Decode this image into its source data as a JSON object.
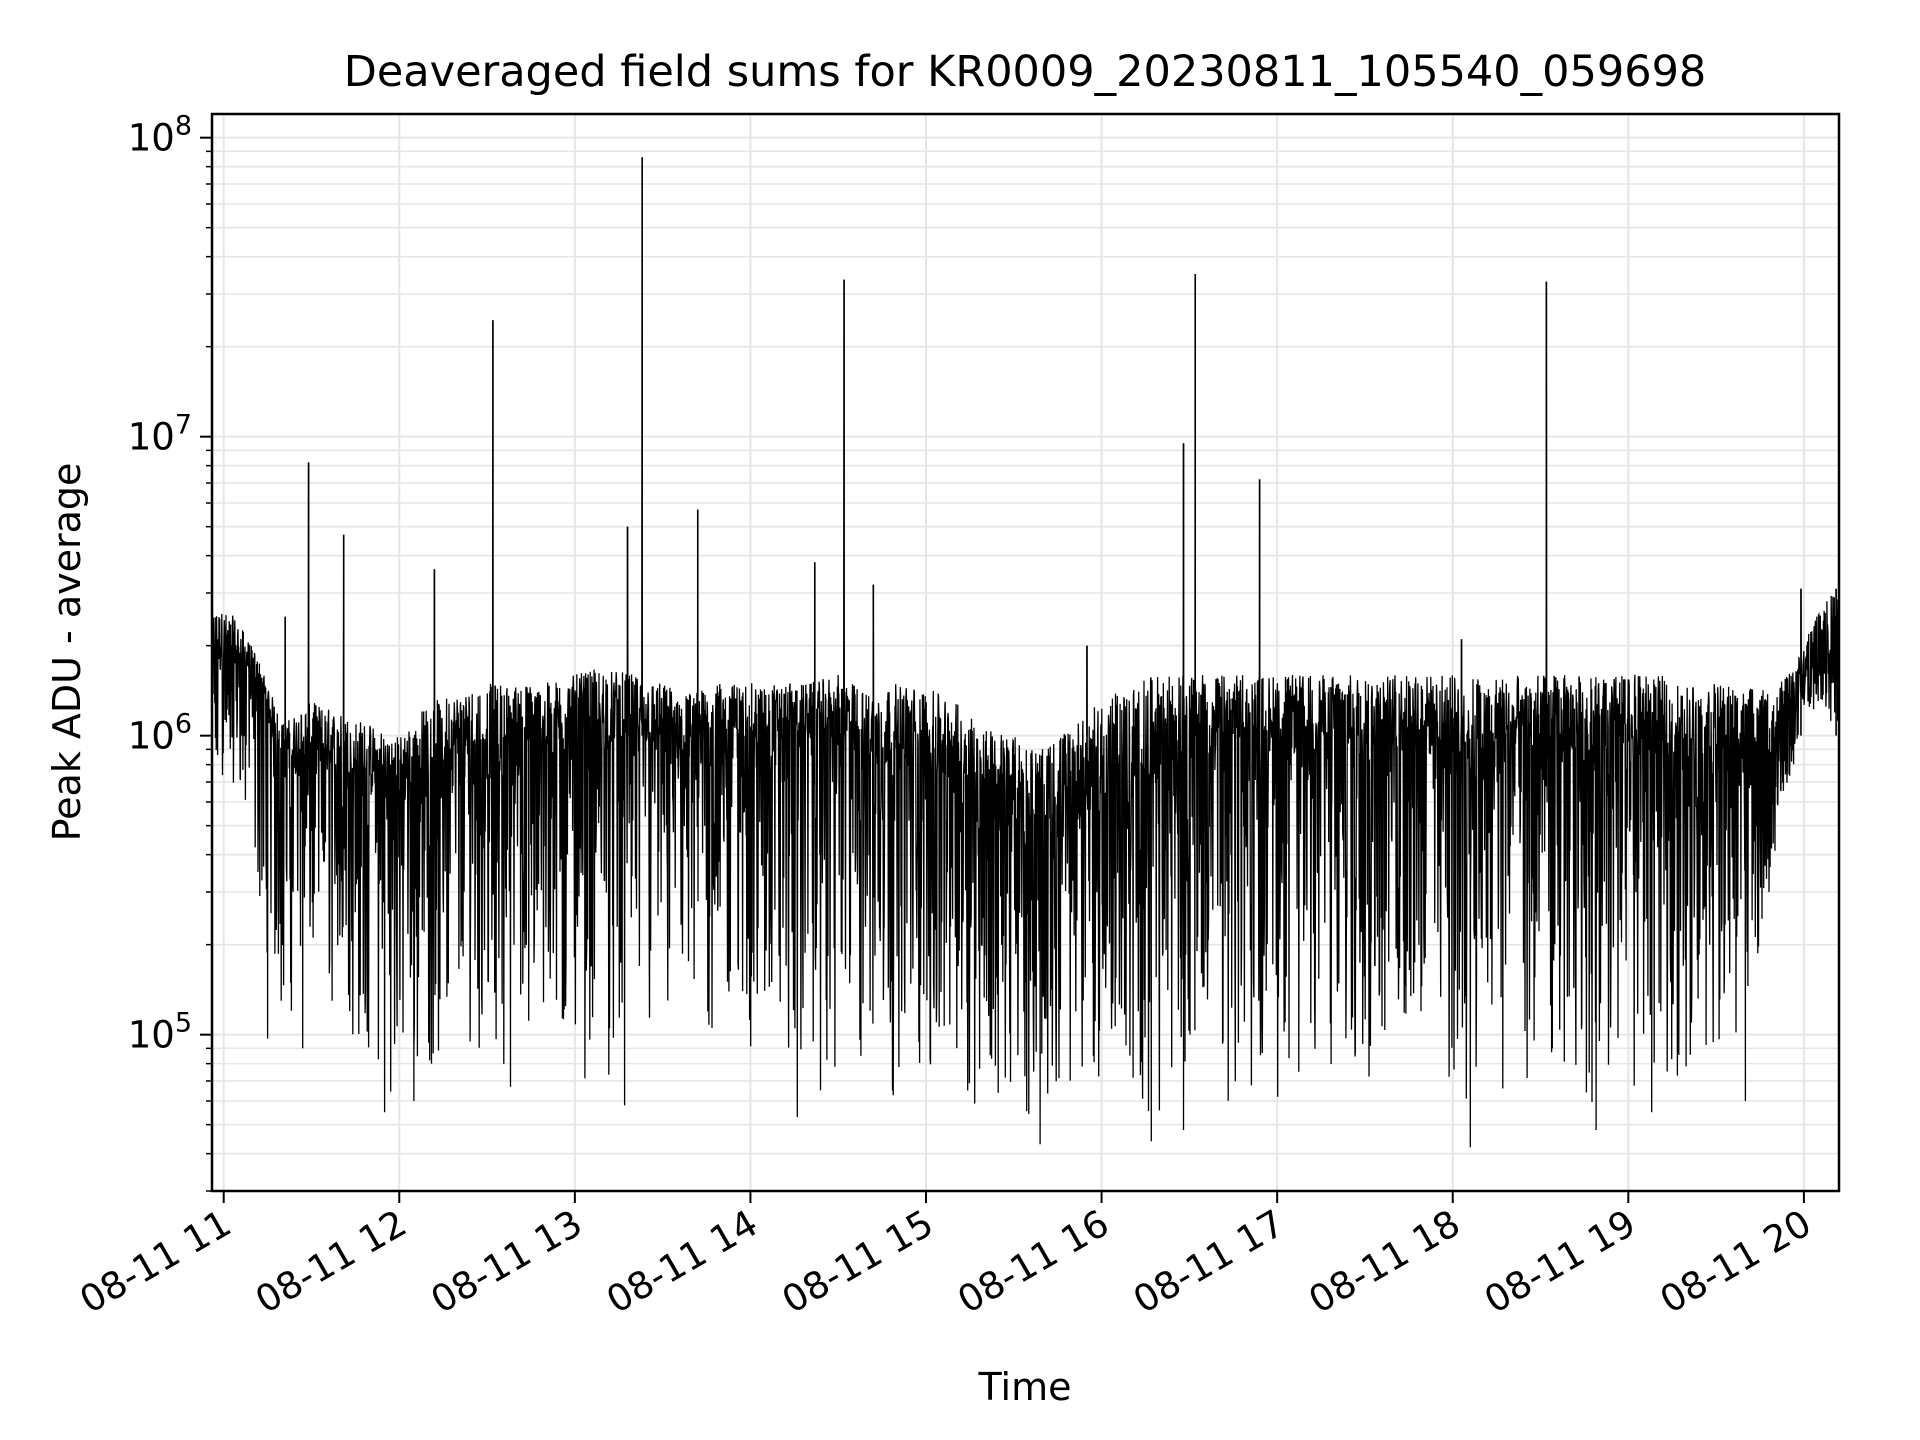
{
  "chart_data": {
    "type": "line",
    "title": "Deaveraged field sums for KR0009_20230811_105540_059698",
    "xlabel": "Time",
    "ylabel": "Peak ADU - average",
    "yscale": "log",
    "ylim": [
      30000,
      120000000
    ],
    "xlim": [
      "2023-08-11 10:56",
      "2023-08-11 20:12"
    ],
    "grid": true,
    "line_color": "#000000",
    "grid_color": "#e6e6e6",
    "x_ticks": [
      {
        "value": "2023-08-11 11:00",
        "label": "08-11 11"
      },
      {
        "value": "2023-08-11 12:00",
        "label": "08-11 12"
      },
      {
        "value": "2023-08-11 13:00",
        "label": "08-11 13"
      },
      {
        "value": "2023-08-11 14:00",
        "label": "08-11 14"
      },
      {
        "value": "2023-08-11 15:00",
        "label": "08-11 15"
      },
      {
        "value": "2023-08-11 16:00",
        "label": "08-11 16"
      },
      {
        "value": "2023-08-11 17:00",
        "label": "08-11 17"
      },
      {
        "value": "2023-08-11 18:00",
        "label": "08-11 18"
      },
      {
        "value": "2023-08-11 19:00",
        "label": "08-11 19"
      },
      {
        "value": "2023-08-11 20:00",
        "label": "08-11 20"
      }
    ],
    "y_ticks": [
      {
        "value": 100000,
        "base": "10",
        "exp": "5"
      },
      {
        "value": 1000000,
        "base": "10",
        "exp": "6"
      },
      {
        "value": 10000000,
        "base": "10",
        "exp": "7"
      },
      {
        "value": 100000000,
        "base": "10",
        "exp": "8"
      }
    ],
    "series": [
      {
        "x": [
          "2023-08-11 10:56",
          "2023-08-11 11:04",
          "2023-08-11 11:12",
          "2023-08-11 11:20",
          "2023-08-11 11:30",
          "2023-08-11 11:40",
          "2023-08-11 11:50",
          "2023-08-11 12:00",
          "2023-08-11 12:10",
          "2023-08-11 12:20",
          "2023-08-11 12:30",
          "2023-08-11 12:40",
          "2023-08-11 12:50",
          "2023-08-11 13:00",
          "2023-08-11 13:10",
          "2023-08-11 13:20",
          "2023-08-11 13:30",
          "2023-08-11 13:40",
          "2023-08-11 13:50",
          "2023-08-11 14:00",
          "2023-08-11 14:10",
          "2023-08-11 14:20",
          "2023-08-11 14:30",
          "2023-08-11 14:40",
          "2023-08-11 14:50",
          "2023-08-11 15:00",
          "2023-08-11 15:10",
          "2023-08-11 15:20",
          "2023-08-11 15:30",
          "2023-08-11 15:40",
          "2023-08-11 15:50",
          "2023-08-11 16:00",
          "2023-08-11 16:10",
          "2023-08-11 16:20",
          "2023-08-11 16:30",
          "2023-08-11 16:40",
          "2023-08-11 16:50",
          "2023-08-11 17:00",
          "2023-08-11 17:10",
          "2023-08-11 17:20",
          "2023-08-11 17:30",
          "2023-08-11 17:40",
          "2023-08-11 17:50",
          "2023-08-11 18:00",
          "2023-08-11 18:10",
          "2023-08-11 18:20",
          "2023-08-11 18:30",
          "2023-08-11 18:40",
          "2023-08-11 18:50",
          "2023-08-11 19:00",
          "2023-08-11 19:10",
          "2023-08-11 19:20",
          "2023-08-11 19:30",
          "2023-08-11 19:40",
          "2023-08-11 19:50",
          "2023-08-11 20:00",
          "2023-08-11 20:06",
          "2023-08-11 20:12"
        ],
        "baseline": [
          1500000,
          1600000,
          1400000,
          700000,
          750000,
          650000,
          600000,
          550000,
          600000,
          650000,
          700000,
          750000,
          800000,
          800000,
          850000,
          900000,
          800000,
          750000,
          800000,
          850000,
          850000,
          900000,
          900000,
          700000,
          750000,
          700000,
          600000,
          450000,
          400000,
          350000,
          450000,
          500000,
          400000,
          700000,
          800000,
          800000,
          850000,
          850000,
          850000,
          800000,
          850000,
          850000,
          850000,
          700000,
          650000,
          700000,
          750000,
          750000,
          750000,
          800000,
          750000,
          700000,
          700000,
          650000,
          600000,
          1400000,
          1700000,
          1500000
        ],
        "low_envelope": [
          500000,
          700000,
          250000,
          100000,
          150000,
          100000,
          70000,
          60000,
          70000,
          80000,
          90000,
          70000,
          75000,
          70000,
          65000,
          70000,
          75000,
          70000,
          80000,
          80000,
          70000,
          65000,
          55000,
          60000,
          60000,
          65000,
          60000,
          55000,
          50000,
          55000,
          60000,
          70000,
          50000,
          55000,
          60000,
          55000,
          60000,
          55000,
          55000,
          55000,
          55000,
          55000,
          60000,
          55000,
          50000,
          55000,
          60000,
          60000,
          55000,
          60000,
          65000,
          70000,
          80000,
          100000,
          350000,
          1200000,
          1200000,
          1000000
        ],
        "high_envelope": [
          2700000,
          2500000,
          1800000,
          1100000,
          1300000,
          1200000,
          1100000,
          1000000,
          1300000,
          1400000,
          1500000,
          1500000,
          1500000,
          1600000,
          1700000,
          1600000,
          1500000,
          1400000,
          1500000,
          1500000,
          1500000,
          1500000,
          1600000,
          1400000,
          1500000,
          1450000,
          1300000,
          1100000,
          1000000,
          900000,
          1100000,
          1300000,
          1500000,
          1600000,
          1600000,
          1600000,
          1600000,
          1600000,
          1600000,
          1600000,
          1600000,
          1600000,
          1600000,
          1600000,
          1600000,
          1600000,
          1600000,
          1600000,
          1600000,
          1600000,
          1600000,
          1500000,
          1500000,
          1450000,
          1400000,
          2000000,
          2900000,
          3000000
        ],
        "spikes": [
          {
            "x": "2023-08-11 11:21",
            "y": 2500000
          },
          {
            "x": "2023-08-11 11:29",
            "y": 8200000
          },
          {
            "x": "2023-08-11 11:41",
            "y": 4700000
          },
          {
            "x": "2023-08-11 12:12",
            "y": 3600000
          },
          {
            "x": "2023-08-11 12:32",
            "y": 24500000
          },
          {
            "x": "2023-08-11 13:18",
            "y": 5000000
          },
          {
            "x": "2023-08-11 13:23",
            "y": 86000000
          },
          {
            "x": "2023-08-11 13:42",
            "y": 5700000
          },
          {
            "x": "2023-08-11 14:22",
            "y": 3800000
          },
          {
            "x": "2023-08-11 14:32",
            "y": 33500000
          },
          {
            "x": "2023-08-11 14:42",
            "y": 3200000
          },
          {
            "x": "2023-08-11 15:55",
            "y": 2000000
          },
          {
            "x": "2023-08-11 16:28",
            "y": 9500000
          },
          {
            "x": "2023-08-11 16:32",
            "y": 35000000
          },
          {
            "x": "2023-08-11 16:54",
            "y": 7200000
          },
          {
            "x": "2023-08-11 18:03",
            "y": 2100000
          },
          {
            "x": "2023-08-11 18:32",
            "y": 33000000
          },
          {
            "x": "2023-08-11 19:59",
            "y": 3100000
          },
          {
            "x": "2023-08-11 20:11",
            "y": 3100000
          }
        ],
        "dips": [
          {
            "x": "2023-08-11 11:15",
            "y": 97000
          },
          {
            "x": "2023-08-11 11:27",
            "y": 90000
          },
          {
            "x": "2023-08-11 11:55",
            "y": 55000
          },
          {
            "x": "2023-08-11 12:05",
            "y": 60000
          },
          {
            "x": "2023-08-11 12:38",
            "y": 67000
          },
          {
            "x": "2023-08-11 13:17",
            "y": 58000
          },
          {
            "x": "2023-08-11 14:16",
            "y": 53000
          },
          {
            "x": "2023-08-11 15:39",
            "y": 43000
          },
          {
            "x": "2023-08-11 16:17",
            "y": 44000
          },
          {
            "x": "2023-08-11 16:28",
            "y": 48000
          },
          {
            "x": "2023-08-11 18:06",
            "y": 42000
          },
          {
            "x": "2023-08-11 18:49",
            "y": 48000
          },
          {
            "x": "2023-08-11 19:08",
            "y": 55000
          },
          {
            "x": "2023-08-11 19:40",
            "y": 60000
          }
        ]
      }
    ]
  }
}
